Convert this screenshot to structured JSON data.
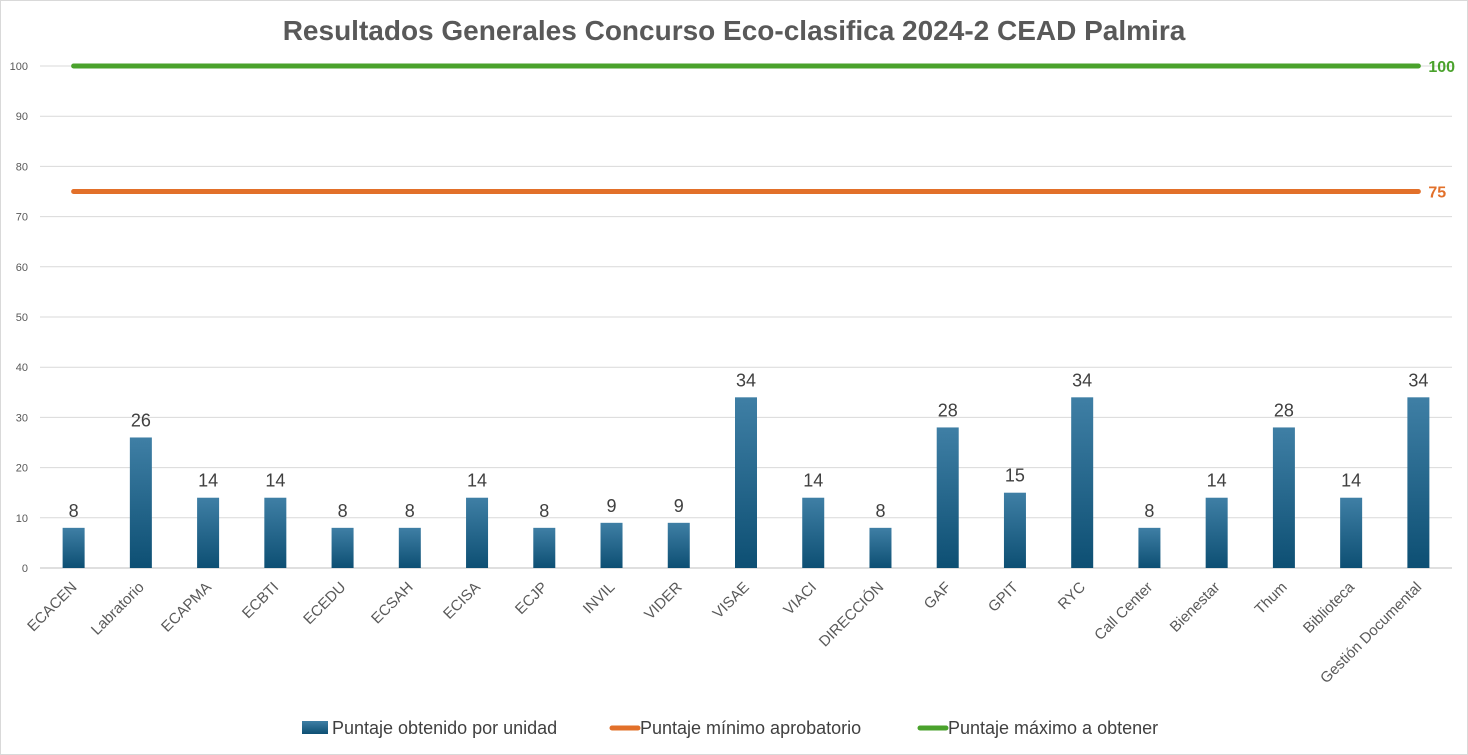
{
  "chart_data": {
    "type": "bar",
    "title": "Resultados Generales Concurso Eco-clasifica 2024-2 CEAD Palmira",
    "xlabel": "",
    "ylabel": "",
    "ylim": [
      0,
      100
    ],
    "yticks": [
      0,
      10,
      20,
      30,
      40,
      50,
      60,
      70,
      80,
      90,
      100
    ],
    "grid": true,
    "legend_position": "bottom",
    "categories": [
      "ECACEN",
      "Labratorio",
      "ECAPMA",
      "ECBTI",
      "ECEDU",
      "ECSAH",
      "ECISA",
      "ECJP",
      "INVIL",
      "VIDER",
      "VISAE",
      "VIACI",
      "DIRECCIÓN",
      "GAF",
      "GPIT",
      "RYC",
      "Call Center",
      "Bienestar",
      "Thum",
      "Biblioteca",
      "Gestión Documental"
    ],
    "series": [
      {
        "name": "Puntaje obtenido por unidad",
        "kind": "bar",
        "color": "#1f5f7f",
        "values": [
          8,
          26,
          14,
          14,
          8,
          8,
          14,
          8,
          9,
          9,
          34,
          14,
          8,
          28,
          15,
          34,
          8,
          14,
          28,
          14,
          34
        ]
      },
      {
        "name": "Puntaje mínimo aprobatorio",
        "kind": "line",
        "color": "#e2702a",
        "value": 75,
        "end_label": "75"
      },
      {
        "name": "Puntaje máximo a obtener",
        "kind": "line",
        "color": "#4aa22c",
        "value": 100,
        "end_label": "100"
      }
    ]
  }
}
